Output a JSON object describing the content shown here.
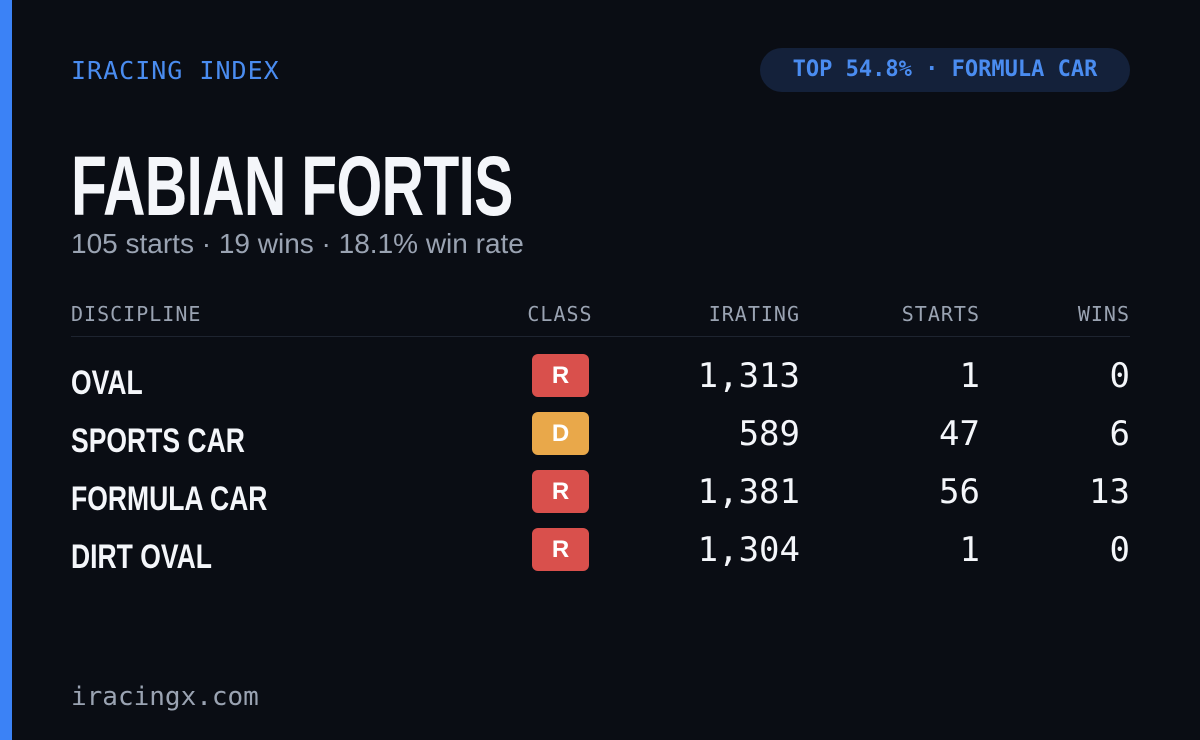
{
  "header": {
    "brand": "IRACING INDEX",
    "badge": "TOP 54.8% · FORMULA CAR"
  },
  "profile": {
    "name": "FABIAN FORTIS",
    "summary": "105 starts · 19 wins · 18.1% win rate"
  },
  "table": {
    "columns": [
      "DISCIPLINE",
      "CLASS",
      "IRATING",
      "STARTS",
      "WINS"
    ],
    "rows": [
      [
        "OVAL",
        "R",
        "1,313",
        "1",
        "0"
      ],
      [
        "SPORTS CAR",
        "D",
        "589",
        "47",
        "6"
      ],
      [
        "FORMULA CAR",
        "R",
        "1,381",
        "56",
        "13"
      ],
      [
        "DIRT OVAL",
        "R",
        "1,304",
        "1",
        "0"
      ]
    ],
    "class_colors": {
      "R": "#d9504c",
      "D": "#e9a84a"
    }
  },
  "footer": {
    "site": "iracingx.com"
  }
}
